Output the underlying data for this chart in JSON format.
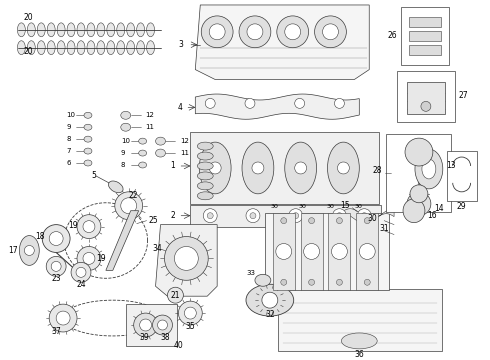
{
  "background_color": "#ffffff",
  "lc": "#3a3a3a",
  "lc_light": "#aaaaaa",
  "fig_width": 4.9,
  "fig_height": 3.6,
  "dpi": 100,
  "xlim": [
    0,
    490
  ],
  "ylim": [
    0,
    360
  ]
}
